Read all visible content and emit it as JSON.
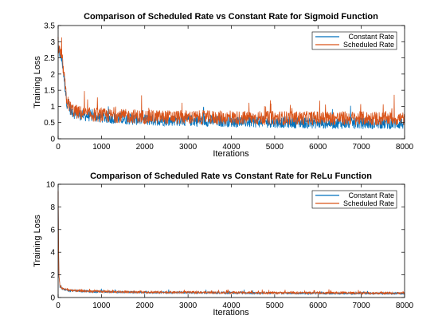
{
  "chart_data": [
    {
      "type": "line",
      "title": "Comparison of Scheduled Rate vs Constant Rate for Sigmoid Function",
      "xlabel": "Iterations",
      "ylabel": "Training Loss",
      "xlim": [
        0,
        8000
      ],
      "ylim": [
        0,
        3.5
      ],
      "xticks": [
        0,
        1000,
        2000,
        3000,
        4000,
        5000,
        6000,
        7000,
        8000
      ],
      "yticks": [
        0,
        0.5,
        1,
        1.5,
        2,
        2.5,
        3,
        3.5
      ],
      "xtick_labels": [
        "0",
        "1000",
        "2000",
        "3000",
        "4000",
        "5000",
        "6000",
        "7000",
        "8000"
      ],
      "ytick_labels": [
        "0",
        "0.5",
        "1",
        "1.5",
        "2",
        "2.5",
        "3",
        "3.5"
      ],
      "grid": false,
      "legend_position": "top-right",
      "series": [
        {
          "name": "Constant Rate",
          "color": "#0072BD",
          "x": [
            0,
            50,
            100,
            150,
            200,
            300,
            400,
            600,
            800,
            1000,
            1500,
            2000,
            3000,
            4000,
            5000,
            6000,
            7000,
            8000
          ],
          "y": [
            2.7,
            2.6,
            2.3,
            1.7,
            1.1,
            0.85,
            0.75,
            0.7,
            0.68,
            0.65,
            0.6,
            0.57,
            0.55,
            0.52,
            0.5,
            0.47,
            0.46,
            0.45
          ],
          "noise": 0.18
        },
        {
          "name": "Scheduled Rate",
          "color": "#D95319",
          "x": [
            0,
            50,
            100,
            150,
            200,
            300,
            400,
            600,
            800,
            1000,
            1500,
            2000,
            3000,
            4000,
            5000,
            6000,
            7000,
            8000
          ],
          "y": [
            2.75,
            2.65,
            2.35,
            1.75,
            1.15,
            0.9,
            0.82,
            0.75,
            0.72,
            0.7,
            0.68,
            0.66,
            0.64,
            0.63,
            0.62,
            0.62,
            0.61,
            0.6
          ],
          "noise": 0.22
        }
      ]
    },
    {
      "type": "line",
      "title": "Comparison of Scheduled Rate vs Constant Rate for ReLu Function",
      "xlabel": "Iterations",
      "ylabel": "Training Loss",
      "xlim": [
        0,
        8000
      ],
      "ylim": [
        0,
        10
      ],
      "xticks": [
        0,
        1000,
        2000,
        3000,
        4000,
        5000,
        6000,
        7000,
        8000
      ],
      "yticks": [
        0,
        2,
        4,
        6,
        8,
        10
      ],
      "xtick_labels": [
        "0",
        "1000",
        "2000",
        "3000",
        "4000",
        "5000",
        "6000",
        "7000",
        "8000"
      ],
      "ytick_labels": [
        "0",
        "2",
        "4",
        "6",
        "8",
        "10"
      ],
      "grid": false,
      "legend_position": "top-right",
      "series": [
        {
          "name": "Constant Rate",
          "color": "#0072BD",
          "x": [
            0,
            10,
            20,
            40,
            80,
            150,
            300,
            600,
            1000,
            2000,
            3000,
            4000,
            5000,
            6000,
            7000,
            8000
          ],
          "y": [
            9.2,
            4.0,
            1.8,
            1.0,
            0.8,
            0.7,
            0.6,
            0.55,
            0.5,
            0.45,
            0.42,
            0.4,
            0.38,
            0.37,
            0.36,
            0.35
          ],
          "noise": 0.09
        },
        {
          "name": "Scheduled Rate",
          "color": "#D95319",
          "x": [
            0,
            10,
            20,
            40,
            80,
            150,
            300,
            600,
            1000,
            2000,
            3000,
            4000,
            5000,
            6000,
            7000,
            8000
          ],
          "y": [
            9.4,
            4.2,
            1.9,
            1.05,
            0.82,
            0.72,
            0.62,
            0.56,
            0.52,
            0.47,
            0.44,
            0.42,
            0.41,
            0.4,
            0.39,
            0.38
          ],
          "noise": 0.1
        }
      ]
    }
  ]
}
